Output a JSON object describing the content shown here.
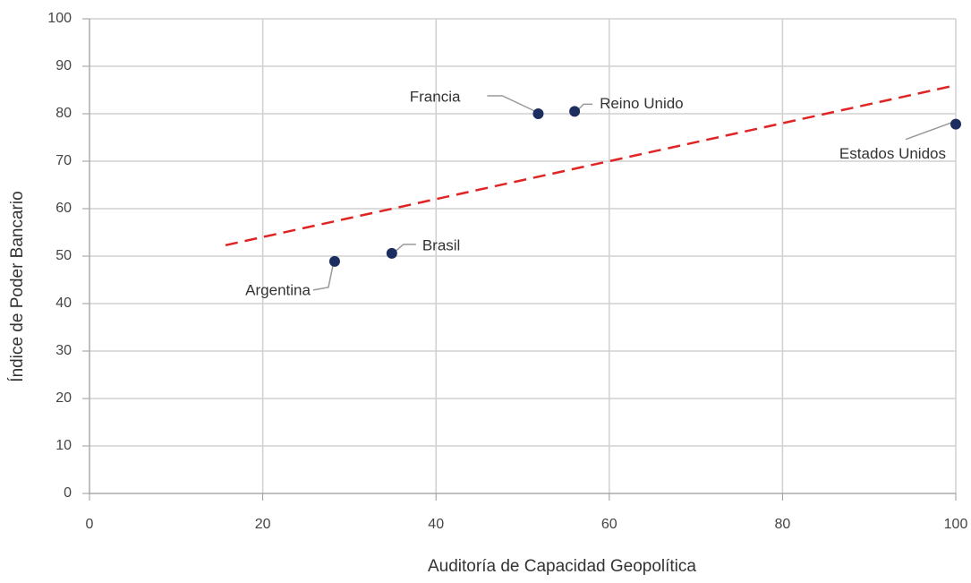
{
  "chart_data": {
    "type": "scatter",
    "xlabel": "Auditoría de Capacidad Geopolítica",
    "ylabel": "Índice de Poder Bancario",
    "labels": [
      "Argentina",
      "Brasil",
      "Francia",
      "Reino Unido",
      "Estados Unidos"
    ],
    "x": [
      28.3,
      34.9,
      51.8,
      56.0,
      100
    ],
    "values": [
      48.9,
      50.6,
      80.0,
      80.5,
      77.8
    ],
    "color": "#1c2d5f",
    "trendline": {
      "x": [
        15.7,
        100
      ],
      "y": [
        52.3,
        86.0
      ],
      "color": "#e02424",
      "dashed": true
    },
    "xlim": [
      0,
      100
    ],
    "xticks": [
      0,
      20,
      40,
      60,
      80,
      100
    ],
    "ylim": [
      0,
      100
    ],
    "yticks": [
      0,
      10,
      20,
      30,
      40,
      50,
      60,
      70,
      80,
      90,
      100
    ],
    "grid": true
  }
}
